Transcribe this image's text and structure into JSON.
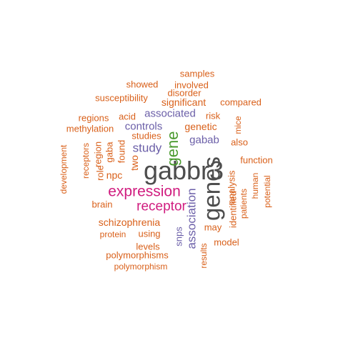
{
  "palette": {
    "gray": "#4d4d4d",
    "magenta": "#d01c7f",
    "purple": "#6b5fa8",
    "green": "#4a9a2e",
    "orange": "#d9601a"
  },
  "words": [
    {
      "text": "gabbr3",
      "color": "gray",
      "orient": "h"
    },
    {
      "text": "genes",
      "color": "gray",
      "orient": "v"
    },
    {
      "text": "expression",
      "color": "magenta",
      "orient": "h"
    },
    {
      "text": "receptor",
      "color": "magenta",
      "orient": "h"
    },
    {
      "text": "gene",
      "color": "green",
      "orient": "v"
    },
    {
      "text": "association",
      "color": "purple",
      "orient": "v"
    },
    {
      "text": "associated",
      "color": "purple",
      "orient": "h"
    },
    {
      "text": "controls",
      "color": "purple",
      "orient": "h"
    },
    {
      "text": "study",
      "color": "purple",
      "orient": "h"
    },
    {
      "text": "gabab",
      "color": "purple",
      "orient": "h"
    },
    {
      "text": "snps",
      "color": "purple",
      "orient": "v"
    },
    {
      "text": "schizophrenia",
      "color": "orange",
      "orient": "h"
    },
    {
      "text": "significant",
      "color": "orange",
      "orient": "h"
    },
    {
      "text": "genetic",
      "color": "orange",
      "orient": "h"
    },
    {
      "text": "studies",
      "color": "orange",
      "orient": "h"
    },
    {
      "text": "two",
      "color": "orange",
      "orient": "v"
    },
    {
      "text": "npc",
      "color": "orange",
      "orient": "h"
    },
    {
      "text": "brain",
      "color": "orange",
      "orient": "h"
    },
    {
      "text": "using",
      "color": "orange",
      "orient": "h"
    },
    {
      "text": "may",
      "color": "orange",
      "orient": "h"
    },
    {
      "text": "found",
      "color": "orange",
      "orient": "v"
    },
    {
      "text": "gaba",
      "color": "orange",
      "orient": "v"
    },
    {
      "text": "role",
      "color": "orange",
      "orient": "v"
    },
    {
      "text": "region",
      "color": "orange",
      "orient": "v"
    },
    {
      "text": "receptors",
      "color": "orange",
      "orient": "v"
    },
    {
      "text": "development",
      "color": "orange",
      "orient": "v"
    },
    {
      "text": "analysis",
      "color": "orange",
      "orient": "v"
    },
    {
      "text": "patients",
      "color": "orange",
      "orient": "v"
    },
    {
      "text": "identified",
      "color": "orange",
      "orient": "v"
    },
    {
      "text": "human",
      "color": "orange",
      "orient": "v"
    },
    {
      "text": "potential",
      "color": "orange",
      "orient": "v"
    },
    {
      "text": "function",
      "color": "orange",
      "orient": "h"
    },
    {
      "text": "also",
      "color": "orange",
      "orient": "h"
    },
    {
      "text": "mice",
      "color": "orange",
      "orient": "v"
    },
    {
      "text": "risk",
      "color": "orange",
      "orient": "h"
    },
    {
      "text": "compared",
      "color": "orange",
      "orient": "h"
    },
    {
      "text": "disorder",
      "color": "orange",
      "orient": "h"
    },
    {
      "text": "involved",
      "color": "orange",
      "orient": "h"
    },
    {
      "text": "showed",
      "color": "orange",
      "orient": "h"
    },
    {
      "text": "samples",
      "color": "orange",
      "orient": "h"
    },
    {
      "text": "susceptibility",
      "color": "orange",
      "orient": "h"
    },
    {
      "text": "acid",
      "color": "orange",
      "orient": "h"
    },
    {
      "text": "regions",
      "color": "orange",
      "orient": "h"
    },
    {
      "text": "methylation",
      "color": "orange",
      "orient": "h"
    },
    {
      "text": "protein",
      "color": "orange",
      "orient": "h"
    },
    {
      "text": "levels",
      "color": "orange",
      "orient": "h"
    },
    {
      "text": "polymorphisms",
      "color": "orange",
      "orient": "h"
    },
    {
      "text": "polymorphism",
      "color": "orange",
      "orient": "h"
    },
    {
      "text": "results",
      "color": "orange",
      "orient": "v"
    },
    {
      "text": "model",
      "color": "orange",
      "orient": "h"
    }
  ]
}
